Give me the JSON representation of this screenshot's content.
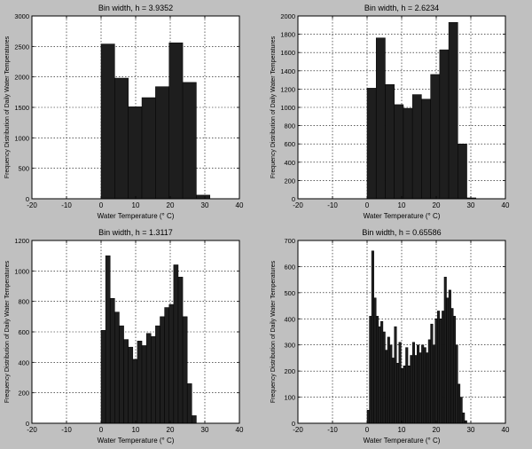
{
  "figure": {
    "background": "#c0c0c0",
    "bar_fill": "#1e1e1e",
    "bar_edge": "#000000"
  },
  "chart_data": [
    {
      "type": "bar",
      "title": "Bin width, h = 3.9352",
      "xlabel": "Water Temperature (° C)",
      "ylabel": "Frequency Distribution of Daily Water Temperatures",
      "xlim": [
        -20,
        40
      ],
      "ylim": [
        0,
        3000
      ],
      "xticks": [
        -20,
        -10,
        0,
        10,
        20,
        30,
        40
      ],
      "yticks": [
        0,
        500,
        1000,
        1500,
        2000,
        2500,
        3000
      ],
      "grid": true,
      "bin_start": 0,
      "bin_width": 3.9352,
      "values": [
        2540,
        1980,
        1510,
        1660,
        1840,
        2560,
        1910,
        60
      ]
    },
    {
      "type": "bar",
      "title": "Bin width, h = 2.6234",
      "xlabel": "Water Temperature (° C)",
      "ylabel": "Frequency Distribution of Daily Water Temperatures",
      "xlim": [
        -20,
        40
      ],
      "ylim": [
        0,
        2000
      ],
      "xticks": [
        -20,
        -10,
        0,
        10,
        20,
        30,
        40
      ],
      "yticks": [
        0,
        200,
        400,
        600,
        800,
        1000,
        1200,
        1400,
        1600,
        1800,
        2000
      ],
      "grid": true,
      "bin_start": 0,
      "bin_width": 2.6234,
      "values": [
        1210,
        1760,
        1250,
        1030,
        990,
        1140,
        1090,
        1360,
        1630,
        1930,
        600,
        10
      ]
    },
    {
      "type": "bar",
      "title": "Bin width, h = 1.3117",
      "xlabel": "Water Temperature (° C)",
      "ylabel": "Frequency Distribution of Daily Water Temperatures",
      "xlim": [
        -20,
        40
      ],
      "ylim": [
        0,
        1200
      ],
      "xticks": [
        -20,
        -10,
        0,
        10,
        20,
        30,
        40
      ],
      "yticks": [
        0,
        200,
        400,
        600,
        800,
        1000,
        1200
      ],
      "grid": true,
      "bin_start": 0,
      "bin_width": 1.3117,
      "values": [
        610,
        1100,
        820,
        730,
        640,
        550,
        500,
        420,
        540,
        510,
        590,
        570,
        640,
        700,
        760,
        780,
        1040,
        960,
        700,
        260,
        50,
        0
      ]
    },
    {
      "type": "bar",
      "title": "Bin width, h = 0.65586",
      "xlabel": "Water Temperature (° C)",
      "ylabel": "Frequency Distribution of Daily Water Temperatures",
      "xlim": [
        -20,
        40
      ],
      "ylim": [
        0,
        700
      ],
      "xticks": [
        -20,
        -10,
        0,
        10,
        20,
        30,
        40
      ],
      "yticks": [
        0,
        100,
        200,
        300,
        400,
        500,
        600,
        700
      ],
      "grid": true,
      "bin_start": 0,
      "bin_width": 0.65586,
      "values": [
        50,
        410,
        660,
        480,
        410,
        370,
        390,
        350,
        280,
        330,
        300,
        250,
        370,
        230,
        310,
        210,
        220,
        290,
        220,
        260,
        310,
        260,
        300,
        270,
        300,
        290,
        270,
        320,
        380,
        300,
        400,
        430,
        400,
        430,
        560,
        480,
        510,
        440,
        410,
        300,
        150,
        100,
        40,
        10
      ]
    }
  ]
}
